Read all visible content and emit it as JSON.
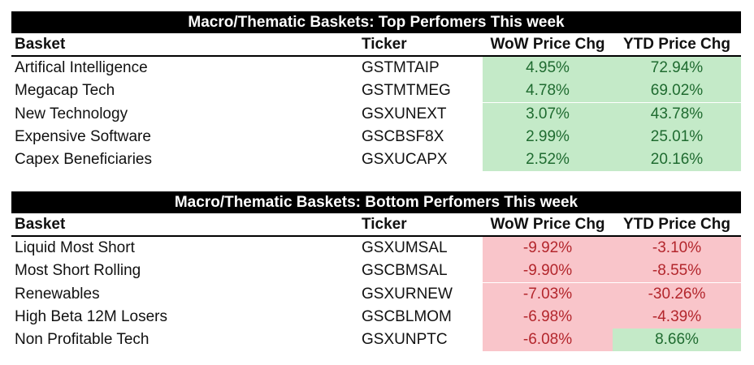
{
  "tables": [
    {
      "title": "Macro/Thematic Baskets: Top Perfomers This week",
      "header": [
        "Basket",
        "Ticker",
        "WoW Price Chg",
        "YTD Price Chg"
      ],
      "rows": [
        [
          "Artifical Intelligence",
          "GSTMTAIP",
          "4.95%",
          "72.94%"
        ],
        [
          "Megacap Tech",
          "GSTMTMEG",
          "4.78%",
          "69.02%"
        ],
        [
          "New Technology",
          "GSXUNEXT",
          "3.07%",
          "43.78%"
        ],
        [
          "Expensive Software",
          "GSCBSF8X",
          "2.99%",
          "25.01%"
        ],
        [
          "Capex Beneficiaries",
          "GSXUCAPX",
          "2.52%",
          "20.16%"
        ]
      ]
    },
    {
      "title": "Macro/Thematic Baskets: Bottom Perfomers This week",
      "header": [
        "Basket",
        "Ticker",
        "WoW Price Chg",
        "YTD Price Chg"
      ],
      "rows": [
        [
          "Liquid Most Short",
          "GSXUMSAL",
          "-9.92%",
          "-3.10%"
        ],
        [
          "Most Short Rolling",
          "GSCBMSAL",
          "-9.90%",
          "-8.55%"
        ],
        [
          "Renewables",
          "GSXURNEW",
          "-7.03%",
          "-30.26%"
        ],
        [
          "High Beta 12M Losers",
          "GSCBLMOM",
          "-6.98%",
          "-4.39%"
        ],
        [
          "Non Profitable Tech",
          "GSXUNPTC",
          "-6.08%",
          "8.66%"
        ]
      ]
    }
  ]
}
